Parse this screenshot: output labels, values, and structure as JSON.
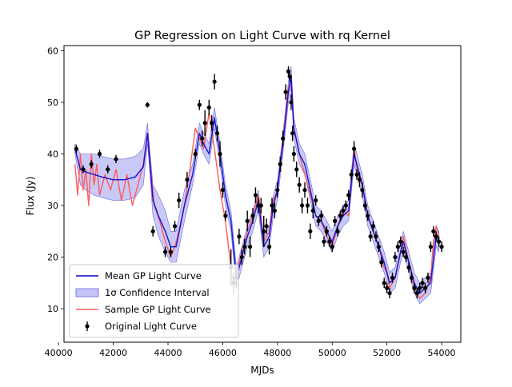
{
  "chart_data": {
    "type": "line",
    "title": "GP Regression on Light Curve with rq Kernel",
    "xlabel": "MJDs",
    "ylabel": "Flux (Jy)",
    "xlim": [
      40200,
      54700
    ],
    "ylim": [
      3.5,
      61
    ],
    "xticks": [
      40000,
      42000,
      44000,
      46000,
      48000,
      50000,
      52000,
      54000
    ],
    "yticks": [
      10,
      20,
      30,
      40,
      50,
      60
    ],
    "grid": false,
    "legend_position": "lower-left",
    "legend": [
      {
        "label": "Mean GP Light Curve",
        "style": "line",
        "color": "#0000cc"
      },
      {
        "label": "1σ Confidence Interval",
        "style": "band",
        "color": "#8888ee"
      },
      {
        "label": "Sample GP Light Curve",
        "style": "line",
        "color": "#ff5a5a"
      },
      {
        "label": "Original Light Curve",
        "style": "errorbar",
        "color": "#000000"
      }
    ],
    "series": [
      {
        "name": "Mean GP Light Curve",
        "x": [
          40600,
          40800,
          41000,
          41300,
          41600,
          42000,
          42400,
          42800,
          43100,
          43250,
          43300,
          43450,
          43650,
          43900,
          44100,
          44300,
          44600,
          44900,
          45150,
          45300,
          45500,
          45700,
          45900,
          46100,
          46300,
          46500,
          46700,
          46900,
          47100,
          47300,
          47500,
          47700,
          47850,
          48000,
          48200,
          48400,
          48500,
          48600,
          48800,
          49000,
          49200,
          49400,
          49600,
          49800,
          50000,
          50200,
          50400,
          50600,
          50800,
          51000,
          51100,
          51300,
          51500,
          51700,
          51900,
          52100,
          52300,
          52500,
          52600,
          52800,
          53000,
          53200,
          53400,
          53600,
          53800,
          53900
        ],
        "y": [
          41,
          37,
          36.5,
          36,
          35.5,
          35,
          35,
          35.5,
          37.5,
          44,
          41,
          31,
          28,
          25,
          22,
          22,
          30,
          36,
          44,
          42,
          40,
          47,
          40,
          32,
          27,
          16,
          20,
          24,
          27,
          31,
          22,
          24,
          30,
          33,
          42,
          52,
          55,
          45,
          40,
          38,
          33,
          28,
          27,
          25,
          23,
          26,
          28,
          29,
          40,
          36,
          34,
          28,
          25,
          22,
          19,
          15,
          16,
          21,
          23,
          19,
          15,
          13,
          14,
          15,
          24,
          23
        ]
      },
      {
        "name": "1σ Confidence Interval",
        "x": [
          40600,
          40800,
          41000,
          41300,
          41600,
          42000,
          42400,
          42800,
          43100,
          43250,
          43300,
          43450,
          43650,
          43900,
          44100,
          44300,
          44600,
          44900,
          45150,
          45300,
          45500,
          45700,
          45900,
          46100,
          46300,
          46500,
          46700,
          46900,
          47100,
          47300,
          47500,
          47700,
          47850,
          48000,
          48200,
          48400,
          48500,
          48600,
          48800,
          49000,
          49200,
          49400,
          49600,
          49800,
          50000,
          50200,
          50400,
          50600,
          50800,
          51000,
          51100,
          51300,
          51500,
          51700,
          51900,
          52100,
          52300,
          52500,
          52600,
          52800,
          53000,
          53200,
          53400,
          53600,
          53800,
          53900
        ],
        "upper": [
          42,
          40,
          40,
          40,
          39.5,
          39,
          39,
          39.5,
          41,
          46,
          43,
          34,
          32,
          29,
          25,
          25,
          33,
          38,
          46,
          44,
          42,
          49,
          42,
          34,
          29,
          18,
          22,
          26,
          29,
          33,
          24,
          26,
          32,
          35,
          44,
          54,
          57,
          47,
          42,
          40,
          35,
          30,
          29,
          27,
          25,
          28,
          30,
          31,
          42,
          38,
          36,
          30,
          27,
          24,
          21,
          17,
          18,
          23,
          25,
          21,
          17,
          15,
          16,
          17,
          26,
          25
        ],
        "lower": [
          40,
          34,
          33,
          32,
          31.5,
          31,
          31,
          31.5,
          34,
          42,
          39,
          28,
          24,
          21,
          19,
          19,
          27,
          34,
          42,
          40,
          38,
          45,
          38,
          30,
          25,
          14,
          18,
          22,
          25,
          29,
          20,
          22,
          28,
          31,
          40,
          50,
          53,
          43,
          38,
          36,
          31,
          26,
          25,
          23,
          21,
          24,
          26,
          27,
          38,
          34,
          32,
          26,
          23,
          20,
          17,
          13,
          14,
          19,
          21,
          17,
          13,
          11,
          12,
          13,
          22,
          21
        ]
      },
      {
        "name": "Sample GP Light Curve",
        "x": [
          40600,
          40700,
          40800,
          40900,
          41000,
          41100,
          41200,
          41300,
          41400,
          41500,
          41700,
          41900,
          42100,
          42300,
          42500,
          42700,
          42900,
          43100,
          43250,
          43350,
          43500,
          43700,
          43900,
          44100,
          44250,
          44400,
          44600,
          44800,
          45000,
          45150,
          45300,
          45500,
          45700,
          45900,
          46100,
          46300,
          46400,
          46500,
          46700,
          46900,
          47100,
          47300,
          47500,
          47700,
          47850,
          48000,
          48200,
          48400,
          48500,
          48600,
          48800,
          49000,
          49200,
          49400,
          49600,
          49800,
          50000,
          50200,
          50400,
          50600,
          50800,
          50900,
          51000,
          51100,
          51300,
          51500,
          51700,
          51900,
          52000,
          52100,
          52300,
          52500,
          52600,
          52800,
          53000,
          53100,
          53200,
          53400,
          53600,
          53700,
          53800,
          53900
        ],
        "y": [
          38,
          32,
          40,
          33,
          37,
          30,
          40,
          34,
          38,
          32,
          36,
          33,
          37,
          31,
          36,
          30,
          34,
          38,
          44,
          38,
          30,
          27,
          23,
          20,
          22,
          25,
          30,
          37,
          45,
          43,
          41,
          48,
          41,
          33,
          27,
          18,
          14,
          17,
          21,
          25,
          28,
          32,
          23,
          25,
          31,
          33,
          43,
          53,
          54,
          45,
          40,
          36,
          32,
          28,
          27,
          24,
          22,
          26,
          29,
          28,
          41,
          37,
          35,
          34,
          28,
          25,
          22,
          18,
          17,
          14,
          16,
          21,
          24,
          19,
          14,
          13,
          12,
          13,
          16,
          23,
          26,
          24
        ]
      },
      {
        "name": "Original Light Curve",
        "x": [
          40650,
          40900,
          41200,
          41500,
          41800,
          42100,
          43250,
          43450,
          43900,
          44100,
          44250,
          44400,
          44700,
          45000,
          45150,
          45250,
          45350,
          45500,
          45600,
          45700,
          45800,
          45900,
          46000,
          46100,
          46300,
          46400,
          46500,
          46600,
          46700,
          46800,
          46900,
          47000,
          47100,
          47200,
          47300,
          47400,
          47500,
          47600,
          47700,
          47800,
          47900,
          48000,
          48100,
          48200,
          48300,
          48400,
          48450,
          48500,
          48550,
          48600,
          48700,
          48800,
          48900,
          49000,
          49100,
          49200,
          49300,
          49400,
          49500,
          49600,
          49700,
          49800,
          49900,
          50000,
          50100,
          50200,
          50300,
          50400,
          50500,
          50600,
          50700,
          50800,
          50900,
          51000,
          51100,
          51200,
          51300,
          51400,
          51500,
          51600,
          51700,
          51800,
          51900,
          52000,
          52100,
          52200,
          52300,
          52400,
          52500,
          52600,
          52700,
          52800,
          52900,
          53000,
          53100,
          53200,
          53300,
          53400,
          53500,
          53600,
          53700,
          53800,
          53900,
          54000
        ],
        "y": [
          41,
          37,
          38,
          40,
          37,
          39,
          49.5,
          25,
          21,
          21,
          26,
          31,
          35,
          40,
          49.5,
          43,
          46,
          49,
          46,
          54,
          44,
          40,
          33,
          28,
          18,
          15,
          16,
          24,
          20,
          22,
          27,
          22,
          28,
          32,
          30,
          30,
          25,
          26,
          22,
          30,
          29,
          33,
          38,
          43,
          52,
          56,
          55,
          50,
          44,
          40,
          37,
          34,
          30,
          33,
          30,
          25,
          29,
          31,
          27,
          28,
          23,
          25,
          23,
          22,
          27,
          25,
          28,
          29,
          30,
          32,
          36,
          41,
          36,
          35,
          33,
          30,
          28,
          24,
          26,
          24,
          22,
          19,
          15,
          14,
          13,
          16,
          20,
          22,
          23,
          21,
          20,
          18,
          16,
          14,
          13,
          14,
          15,
          14,
          16,
          22,
          25,
          24,
          23,
          22
        ],
        "yerr": [
          0.8,
          0.8,
          0.8,
          0.8,
          0.8,
          0.8,
          0.5,
          1,
          1,
          1,
          1,
          1.5,
          1.5,
          1,
          1,
          1.5,
          2.5,
          1.5,
          1.5,
          1.5,
          1.5,
          2.5,
          1.5,
          1,
          3.5,
          2,
          2,
          1.5,
          1.5,
          1.5,
          2,
          2,
          1.5,
          1.5,
          1.5,
          1.5,
          3,
          1.5,
          1.5,
          1.5,
          1.5,
          1.5,
          1.5,
          1.5,
          1.5,
          1,
          1,
          1.5,
          1.5,
          1.5,
          1.5,
          1.5,
          1.5,
          1.5,
          1.5,
          1.5,
          1.5,
          1,
          1,
          1,
          1,
          1,
          1,
          1,
          1,
          1,
          1,
          1,
          1,
          1,
          1,
          1.5,
          1,
          1.5,
          1.5,
          1,
          1,
          1,
          1,
          1,
          1,
          1,
          1,
          1,
          1,
          1,
          1,
          1,
          1,
          1,
          1,
          1,
          1,
          1,
          1,
          1,
          1,
          1,
          1,
          1,
          1,
          1,
          1,
          1
        ]
      }
    ]
  }
}
